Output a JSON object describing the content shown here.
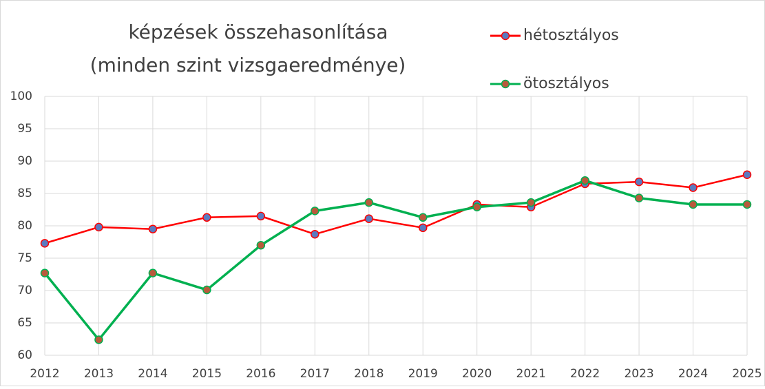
{
  "chart_data": {
    "type": "line",
    "title": "képzések összehasonlítása",
    "subtitle": "(minden szint vizsgaeredménye)",
    "categories": [
      "2012",
      "2013",
      "2014",
      "2015",
      "2016",
      "2017",
      "2018",
      "2019",
      "2020",
      "2021",
      "2022",
      "2023",
      "2024",
      "2025"
    ],
    "series": [
      {
        "name": "hétosztályos",
        "color": "#ff0000",
        "marker_color": "#5b7bc0",
        "values": [
          77.3,
          79.8,
          79.5,
          81.3,
          81.5,
          78.7,
          81.1,
          79.7,
          83.3,
          82.9,
          86.5,
          86.8,
          85.9,
          87.9
        ]
      },
      {
        "name": "ötosztályos",
        "color": "#00b050",
        "marker_color": "#b85a3c",
        "values": [
          72.7,
          62.4,
          72.7,
          70.1,
          77.0,
          82.3,
          83.6,
          81.3,
          82.9,
          83.6,
          87.0,
          84.3,
          83.3,
          83.3
        ]
      }
    ],
    "ylim": [
      60,
      100
    ],
    "yticks": [
      60,
      65,
      70,
      75,
      80,
      85,
      90,
      95,
      100
    ],
    "grid": true,
    "legend": "top-right"
  }
}
